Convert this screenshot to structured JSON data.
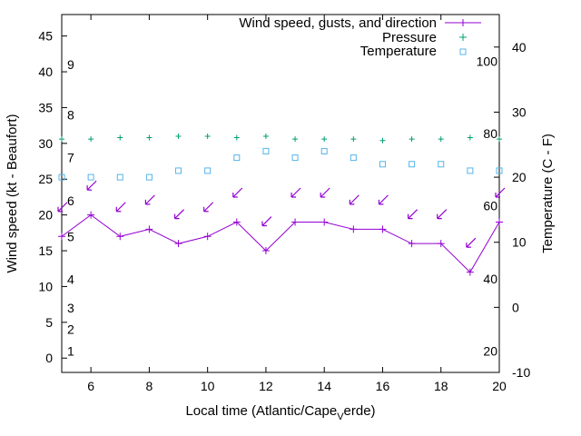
{
  "chart_data": {
    "type": "line",
    "title": "",
    "xlabel": "Local time (Atlantic/Cape_Verde)",
    "xlabel_main": "Local time (Atlantic/Cape",
    "xlabel_sub": "V",
    "xlabel_tail": "erde)",
    "ylabel": "Wind speed (kt - Beaufort)",
    "y2label": "Temperature (C - F)",
    "xlim": [
      5,
      20
    ],
    "ylim": [
      -2,
      48
    ],
    "y2lim": [
      -10,
      45
    ],
    "x_ticks": [
      "6",
      "8",
      "10",
      "12",
      "14",
      "16",
      "18",
      "20"
    ],
    "y_ticks": [
      "0",
      "5",
      "10",
      "15",
      "20",
      "25",
      "30",
      "35",
      "40",
      "45"
    ],
    "y2_ticks": [
      "-10",
      "0",
      "10",
      "20",
      "30",
      "40"
    ],
    "beaufort_labels": [
      {
        "label": "1",
        "kt": 1
      },
      {
        "label": "2",
        "kt": 4
      },
      {
        "label": "3",
        "kt": 7
      },
      {
        "label": "4",
        "kt": 11
      },
      {
        "label": "5",
        "kt": 17
      },
      {
        "label": "6",
        "kt": 22
      },
      {
        "label": "7",
        "kt": 28
      },
      {
        "label": "8",
        "kt": 34
      },
      {
        "label": "9",
        "kt": 41
      }
    ],
    "fahrenheit_labels": [
      {
        "label": "20",
        "c": -6.7
      },
      {
        "label": "40",
        "c": 4.4
      },
      {
        "label": "60",
        "c": 15.6
      },
      {
        "label": "80",
        "c": 26.7
      },
      {
        "label": "100",
        "c": 37.8
      }
    ],
    "legend": {
      "wind": "Wind speed, gusts, and direction",
      "pressure": "Pressure",
      "temperature": "Temperature"
    },
    "colors": {
      "wind": "#9400d3",
      "pressure": "#009e73",
      "temperature": "#56b4e9"
    },
    "x": [
      5,
      6,
      7,
      8,
      9,
      10,
      11,
      12,
      13,
      14,
      15,
      16,
      17,
      18,
      19,
      20
    ],
    "series": [
      {
        "name": "Wind speed",
        "axis": "y",
        "values": [
          17,
          20,
          17,
          18,
          16,
          17,
          19,
          15,
          19,
          19,
          18,
          18,
          16,
          16,
          12,
          19
        ]
      },
      {
        "name": "Wind gusts",
        "axis": "y",
        "values": [
          21,
          24,
          21,
          22,
          20,
          21,
          23,
          19,
          23,
          23,
          22,
          22,
          20,
          20,
          16,
          23
        ]
      },
      {
        "name": "Pressure",
        "axis": "y",
        "values": [
          30.6,
          30.6,
          30.8,
          30.8,
          31.0,
          31.0,
          30.8,
          31.0,
          30.6,
          30.6,
          30.6,
          30.4,
          30.6,
          30.6,
          30.8,
          30.6
        ]
      },
      {
        "name": "Temperature",
        "axis": "y2",
        "values": [
          20,
          20,
          20,
          20,
          21,
          21,
          23,
          24,
          23,
          24,
          23,
          22,
          22,
          22,
          21,
          21
        ]
      }
    ]
  }
}
